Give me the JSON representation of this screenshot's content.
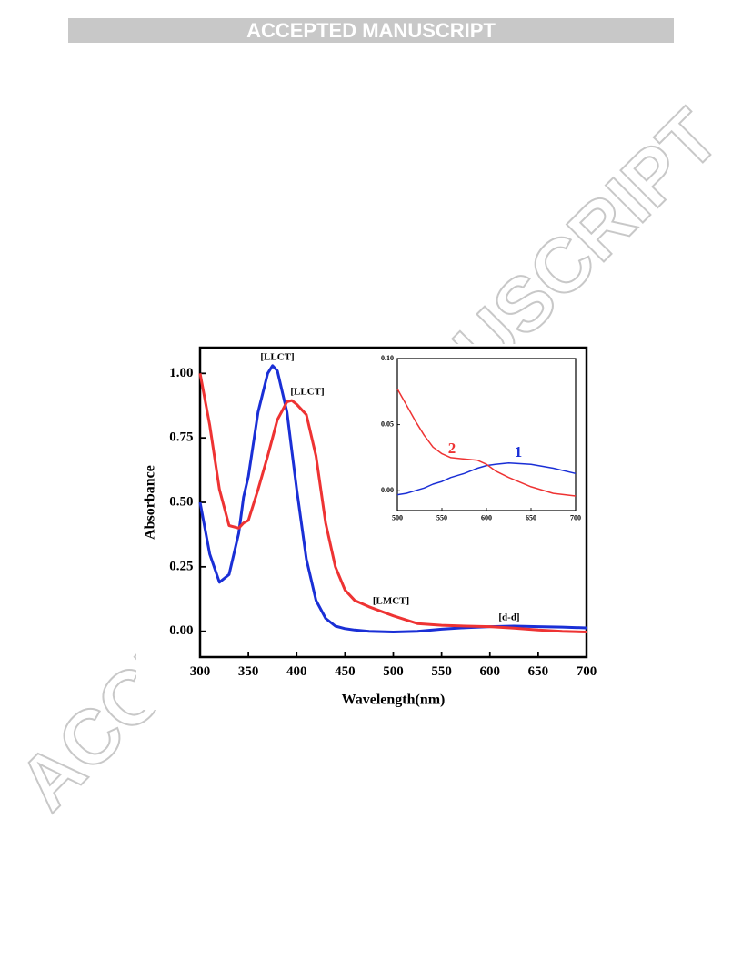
{
  "header": "ACCEPTED MANUSCRIPT",
  "watermark": "ACCEPTED MANUSCRIPT",
  "chart_data": [
    {
      "type": "line",
      "x_label": "Wavelength(nm)",
      "y_label": "Absorbance",
      "x": [
        300,
        310,
        320,
        330,
        340,
        345,
        350,
        360,
        370,
        375,
        380,
        390,
        395,
        400,
        410,
        420,
        430,
        440,
        450,
        460,
        475,
        500,
        525,
        550,
        575,
        600,
        625,
        650,
        675,
        700
      ],
      "series": [
        {
          "color": "#1a2fd6",
          "values": [
            0.5,
            0.3,
            0.19,
            0.22,
            0.38,
            0.52,
            0.6,
            0.85,
            1.0,
            1.03,
            1.01,
            0.85,
            0.7,
            0.55,
            0.28,
            0.12,
            0.05,
            0.02,
            0.01,
            0.005,
            0,
            -0.003,
            0,
            0.008,
            0.014,
            0.018,
            0.02,
            0.018,
            0.016,
            0.013
          ]
        },
        {
          "color": "#ee3333",
          "values": [
            1.0,
            0.8,
            0.55,
            0.41,
            0.4,
            0.42,
            0.43,
            0.55,
            0.68,
            0.75,
            0.82,
            0.89,
            0.895,
            0.88,
            0.84,
            0.68,
            0.42,
            0.25,
            0.16,
            0.12,
            0.095,
            0.06,
            0.03,
            0.023,
            0.02,
            0.018,
            0.012,
            0.005,
            0,
            -0.003
          ]
        }
      ],
      "xlim": [
        300,
        700
      ],
      "xticks": [
        300,
        350,
        400,
        450,
        500,
        550,
        600,
        650,
        700
      ],
      "ylim": [
        -0.1,
        1.1
      ],
      "yticks": [
        {
          "value": 0,
          "label": "0.00"
        },
        {
          "value": 0.25,
          "label": "0.25"
        },
        {
          "value": 0.5,
          "label": "0.50"
        },
        {
          "value": 0.75,
          "label": "0.75"
        },
        {
          "value": 1,
          "label": "1.00"
        }
      ],
      "annotations": [
        "[LLCT]",
        "[LLCT]",
        "[LMCT]",
        "[d-d]"
      ]
    },
    {
      "type": "line",
      "x": [
        500,
        510,
        520,
        530,
        540,
        550,
        560,
        575,
        590,
        600,
        610,
        625,
        650,
        675,
        700
      ],
      "series": [
        {
          "name": "1",
          "color": "#1a2fd6",
          "values": [
            -0.003,
            -0.002,
            0,
            0.002,
            0.005,
            0.007,
            0.01,
            0.013,
            0.017,
            0.019,
            0.02,
            0.021,
            0.02,
            0.017,
            0.013
          ]
        },
        {
          "name": "2",
          "color": "#ee3333",
          "values": [
            0.077,
            0.065,
            0.053,
            0.042,
            0.033,
            0.028,
            0.025,
            0.024,
            0.023,
            0.02,
            0.015,
            0.01,
            0.003,
            -0.002,
            -0.004
          ]
        }
      ],
      "xlim": [
        500,
        700
      ],
      "xticks": [
        500,
        550,
        600,
        650,
        700
      ],
      "ylim": [
        -0.015,
        0.1
      ],
      "yticks": [
        {
          "value": 0,
          "label": "0.00"
        },
        {
          "value": 0.05,
          "label": "0.05"
        },
        {
          "value": 0.1,
          "label": "0.10"
        }
      ]
    }
  ]
}
